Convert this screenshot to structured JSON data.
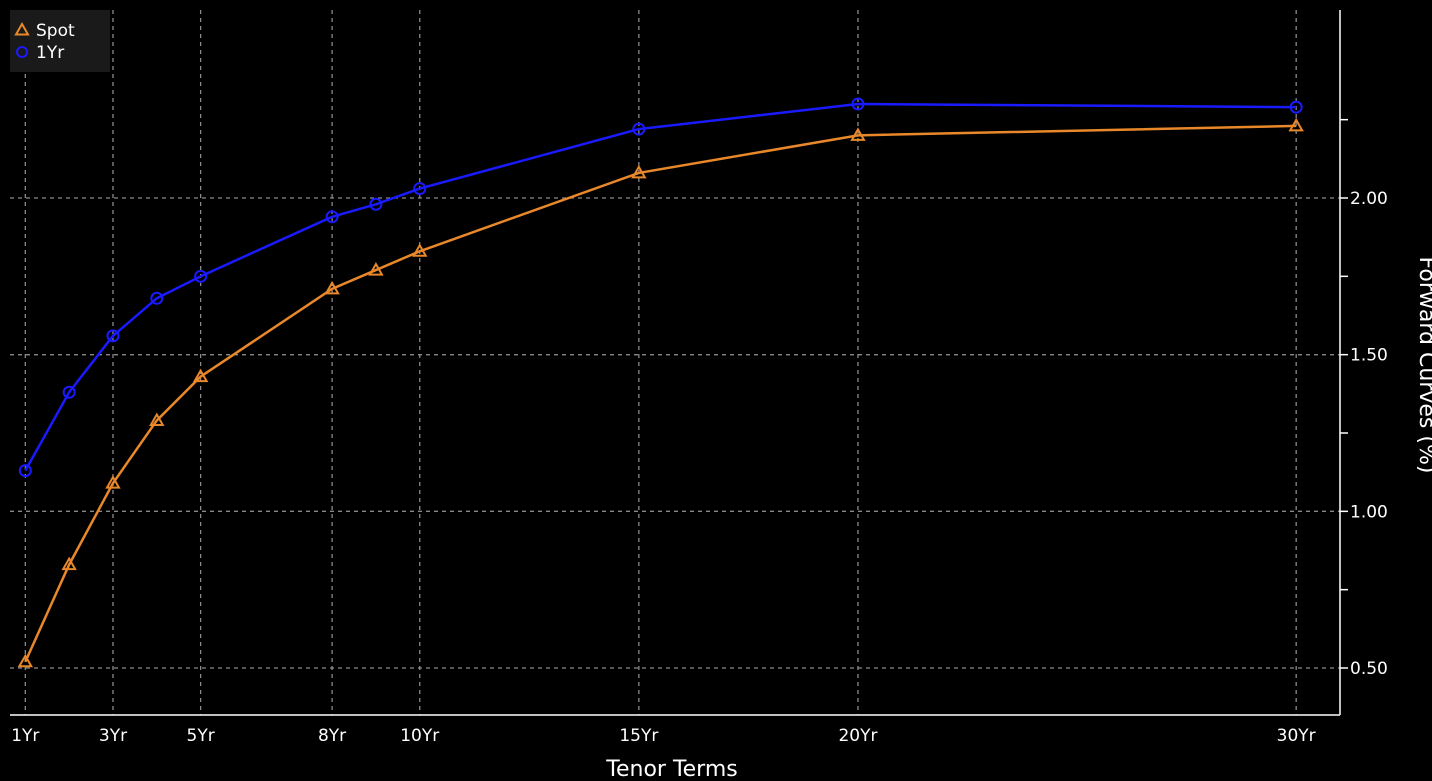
{
  "chart_data": {
    "type": "line",
    "xlabel": "Tenor Terms",
    "ylabel": "Forward Curves (%)",
    "x": [
      1,
      2,
      3,
      4,
      5,
      8,
      9,
      10,
      15,
      20,
      30
    ],
    "x_tick_values": [
      1,
      3,
      5,
      8,
      10,
      15,
      20,
      30
    ],
    "x_tick_labels": [
      "1Yr",
      "3Yr",
      "5Yr",
      "8Yr",
      "10Yr",
      "15Yr",
      "20Yr",
      "30Yr"
    ],
    "y_tick_values": [
      0.5,
      1.0,
      1.5,
      2.0
    ],
    "y_tick_labels": [
      "0.50",
      "1.00",
      "1.50",
      "2.00"
    ],
    "y_minor_ticks": [
      0.75,
      1.25,
      1.75,
      2.25
    ],
    "ylim": [
      0.35,
      2.6
    ],
    "xlim": [
      0.65,
      31.0
    ],
    "grid": true,
    "legend_position": "top-left",
    "series": [
      {
        "name": "Spot",
        "color": "#e8882a",
        "marker": "triangle",
        "values": [
          0.52,
          0.83,
          1.09,
          1.29,
          1.43,
          1.71,
          1.77,
          1.83,
          2.08,
          2.2,
          2.23
        ]
      },
      {
        "name": "1Yr",
        "color": "#1a1aff",
        "marker": "circle",
        "values": [
          1.13,
          1.38,
          1.56,
          1.68,
          1.75,
          1.94,
          1.98,
          2.03,
          2.22,
          2.3,
          2.29
        ]
      }
    ]
  }
}
